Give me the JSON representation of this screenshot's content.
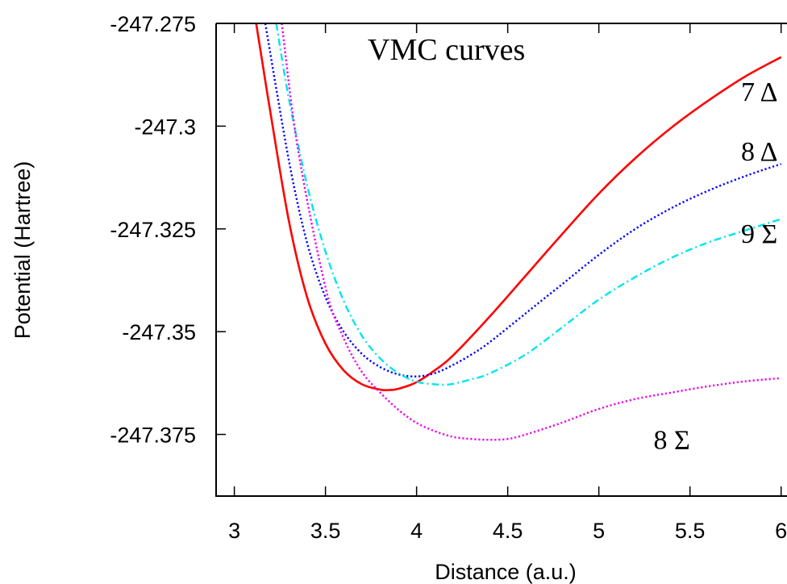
{
  "chart_data": {
    "type": "line",
    "title": "VMC curves",
    "xlabel": "Distance (a.u.)",
    "ylabel": "Potential (Hartree)",
    "xlim": [
      2.9,
      6.05
    ],
    "ylim": [
      -247.39,
      -247.275
    ],
    "xticks": [
      3,
      3.5,
      4,
      4.5,
      5,
      5.5,
      6
    ],
    "xtick_labels": [
      "3",
      "3.5",
      "4",
      "4.5",
      "5",
      "5.5",
      "6"
    ],
    "yticks": [
      -247.275,
      -247.3,
      -247.325,
      -247.35,
      -247.375
    ],
    "ytick_labels": [
      "-247.275",
      "-247.3",
      "-247.325",
      "-247.35",
      "-247.375"
    ],
    "grid": false,
    "series": [
      {
        "name": "7 Δ",
        "color": "#ff0000",
        "style": "solid",
        "x": [
          3.12,
          3.2,
          3.3,
          3.4,
          3.5,
          3.6,
          3.7,
          3.8,
          3.85,
          3.9,
          4.0,
          4.1,
          4.2,
          4.4,
          4.6,
          4.8,
          5.0,
          5.2,
          5.4,
          5.6,
          5.8,
          6.0
        ],
        "y": [
          -247.275,
          -247.2972,
          -247.3232,
          -247.3417,
          -247.3529,
          -247.3594,
          -247.3628,
          -247.3641,
          -247.3642,
          -247.3639,
          -247.3623,
          -247.3594,
          -247.3558,
          -247.3464,
          -247.3363,
          -247.3262,
          -247.3164,
          -247.3078,
          -247.3003,
          -247.2938,
          -247.288,
          -247.2832
        ]
      },
      {
        "name": "8 Δ",
        "color": "#0000ff",
        "style": "dotted",
        "x": [
          3.17,
          3.3,
          3.4,
          3.5,
          3.6,
          3.7,
          3.8,
          3.9,
          4.0,
          4.1,
          4.2,
          4.3,
          4.4,
          4.6,
          4.8,
          5.0,
          5.2,
          5.4,
          5.6,
          5.8,
          6.0
        ],
        "y": [
          -247.275,
          -247.3085,
          -247.3285,
          -247.3416,
          -247.35,
          -247.3554,
          -247.3586,
          -247.3604,
          -247.3609,
          -247.3601,
          -247.3581,
          -247.3556,
          -247.3526,
          -247.3455,
          -247.3384,
          -247.3313,
          -247.325,
          -247.3199,
          -247.3157,
          -247.3122,
          -247.3092
        ]
      },
      {
        "name": "9 Σ",
        "color": "#00e5ee",
        "style": "dashdot",
        "x": [
          3.23,
          3.3,
          3.4,
          3.5,
          3.6,
          3.7,
          3.8,
          3.9,
          4.0,
          4.1,
          4.15,
          4.2,
          4.3,
          4.4,
          4.6,
          4.8,
          5.0,
          5.2,
          5.4,
          5.6,
          5.8,
          6.0
        ],
        "y": [
          -247.275,
          -247.2935,
          -247.3145,
          -247.3305,
          -247.3425,
          -247.351,
          -247.3565,
          -247.3601,
          -247.3622,
          -247.3628,
          -247.3629,
          -247.3627,
          -247.3616,
          -247.3602,
          -247.3555,
          -247.3489,
          -247.3422,
          -247.3367,
          -247.332,
          -247.3283,
          -247.3254,
          -247.3226
        ]
      },
      {
        "name": "8 Σ",
        "color": "#ee00ee",
        "style": "dotted",
        "x": [
          3.26,
          3.35,
          3.5,
          3.6,
          3.7,
          3.8,
          3.9,
          4.0,
          4.1,
          4.2,
          4.3,
          4.4,
          4.5,
          4.6,
          4.8,
          5.0,
          5.2,
          5.4,
          5.6,
          5.8,
          6.0
        ],
        "y": [
          -247.275,
          -247.3059,
          -247.3392,
          -247.3516,
          -247.3598,
          -247.3648,
          -247.369,
          -247.3722,
          -247.3742,
          -247.3756,
          -247.3761,
          -247.3763,
          -247.3761,
          -247.375,
          -247.3721,
          -247.3688,
          -247.3664,
          -247.3648,
          -247.3633,
          -247.3621,
          -247.3613
        ]
      }
    ],
    "annotations": [
      {
        "text": "7 Δ",
        "x": 5.78,
        "y": -247.2915
      },
      {
        "text": "8 Δ",
        "x": 5.78,
        "y": -247.306
      },
      {
        "text": "9 Σ",
        "x": 5.78,
        "y": -247.326
      },
      {
        "text": "8 Σ",
        "x": 5.3,
        "y": -247.3762
      }
    ]
  }
}
